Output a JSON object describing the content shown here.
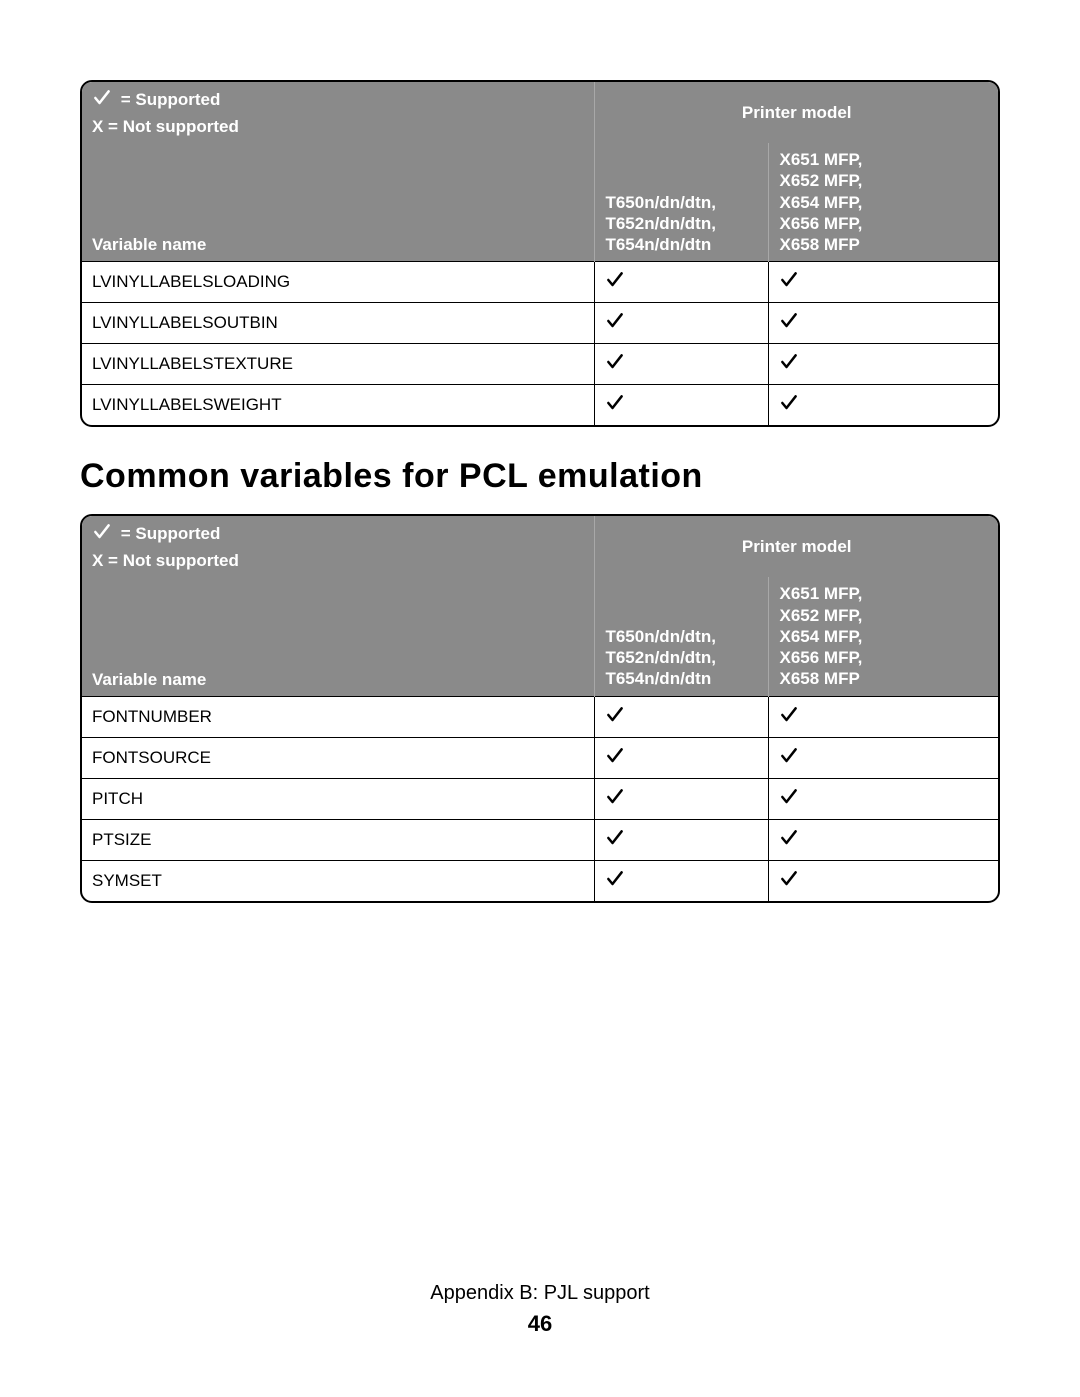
{
  "legend": {
    "supported": "= Supported",
    "not_supported": "X = Not supported",
    "printer_model": "Printer model",
    "variable_name": "Variable name"
  },
  "columns": {
    "col1": "T650n/dn/dtn,\nT652n/dn/dtn,\nT654n/dn/dtn",
    "col2": "X651 MFP,\nX652 MFP,\nX654 MFP,\nX656 MFP,\nX658 MFP"
  },
  "table1": {
    "rows": [
      {
        "name": "LVINYLLABELSLOADING",
        "c1": "check",
        "c2": "check"
      },
      {
        "name": "LVINYLLABELSOUTBIN",
        "c1": "check",
        "c2": "check"
      },
      {
        "name": "LVINYLLABELSTEXTURE",
        "c1": "check",
        "c2": "check"
      },
      {
        "name": "LVINYLLABELSWEIGHT",
        "c1": "check",
        "c2": "check"
      }
    ]
  },
  "heading": "Common variables for PCL emulation",
  "table2": {
    "rows": [
      {
        "name": "FONTNUMBER",
        "c1": "check",
        "c2": "check"
      },
      {
        "name": "FONTSOURCE",
        "c1": "check",
        "c2": "check"
      },
      {
        "name": "PITCH",
        "c1": "check",
        "c2": "check"
      },
      {
        "name": "PTSIZE",
        "c1": "check",
        "c2": "check"
      },
      {
        "name": "SYMSET",
        "c1": "check",
        "c2": "check"
      }
    ]
  },
  "footer": {
    "appendix": "Appendix B: PJL support",
    "page": "46"
  },
  "style": {
    "check_color": "#000000",
    "header_bg": "#8a8a8a",
    "header_text": "#ffffff",
    "border_color": "#000000"
  }
}
